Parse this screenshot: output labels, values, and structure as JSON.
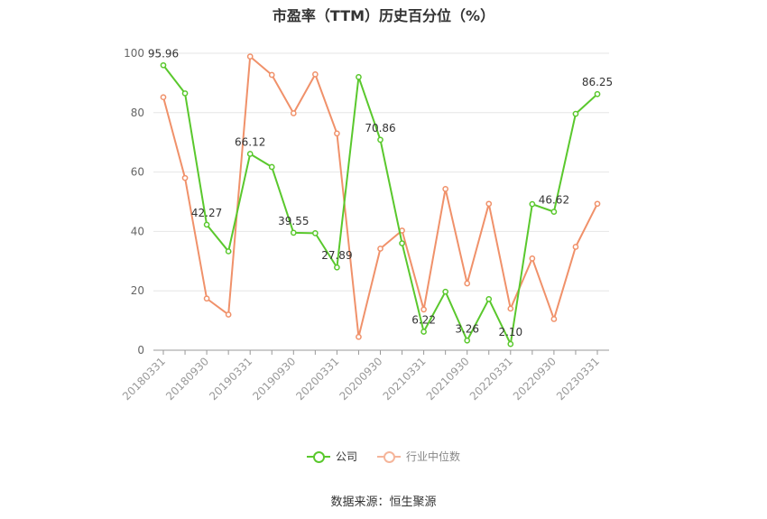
{
  "chart_data": {
    "type": "line",
    "title": "市盈率（TTM）历史百分位（%）",
    "x_tick_labels": [
      "20180331",
      "20180930",
      "20190331",
      "20190930",
      "20200331",
      "20200930",
      "20210331",
      "20210930",
      "20220331",
      "20220930",
      "20230331"
    ],
    "x": [
      "20180331",
      "20180630",
      "20180930",
      "20181231",
      "20190331",
      "20190630",
      "20190930",
      "20191231",
      "20200331",
      "20200630",
      "20200930",
      "20201231",
      "20210331",
      "20210630",
      "20210930",
      "20211231",
      "20220331",
      "20220630",
      "20220930",
      "20221231",
      "20230331"
    ],
    "ylim": [
      0,
      100
    ],
    "y_ticks": [
      0,
      20,
      40,
      60,
      80,
      100
    ],
    "grid": true,
    "legend_position": "bottom",
    "series": [
      {
        "name": "公司",
        "color": "#5ac82d",
        "values": [
          95.96,
          86.5,
          42.27,
          33.3,
          66.12,
          61.7,
          39.55,
          39.4,
          27.89,
          92.0,
          70.86,
          36.0,
          6.22,
          19.7,
          3.26,
          17.2,
          2.1,
          49.2,
          46.62,
          79.6,
          86.25
        ],
        "labels": {
          "0": "95.96",
          "2": "42.27",
          "4": "66.12",
          "6": "39.55",
          "8": "27.89",
          "10": "70.86",
          "12": "6.22",
          "14": "3.26",
          "16": "2.10",
          "18": "46.62",
          "20": "86.25"
        }
      },
      {
        "name": "行业中位数",
        "color": "#f0916a",
        "values": [
          85.2,
          58.0,
          17.4,
          12.0,
          98.9,
          92.7,
          79.8,
          92.9,
          73.0,
          4.5,
          34.2,
          40.3,
          13.7,
          54.3,
          22.5,
          49.3,
          14.0,
          30.9,
          10.5,
          34.8,
          49.3
        ]
      }
    ]
  },
  "source_text": "数据来源：恒生聚源"
}
